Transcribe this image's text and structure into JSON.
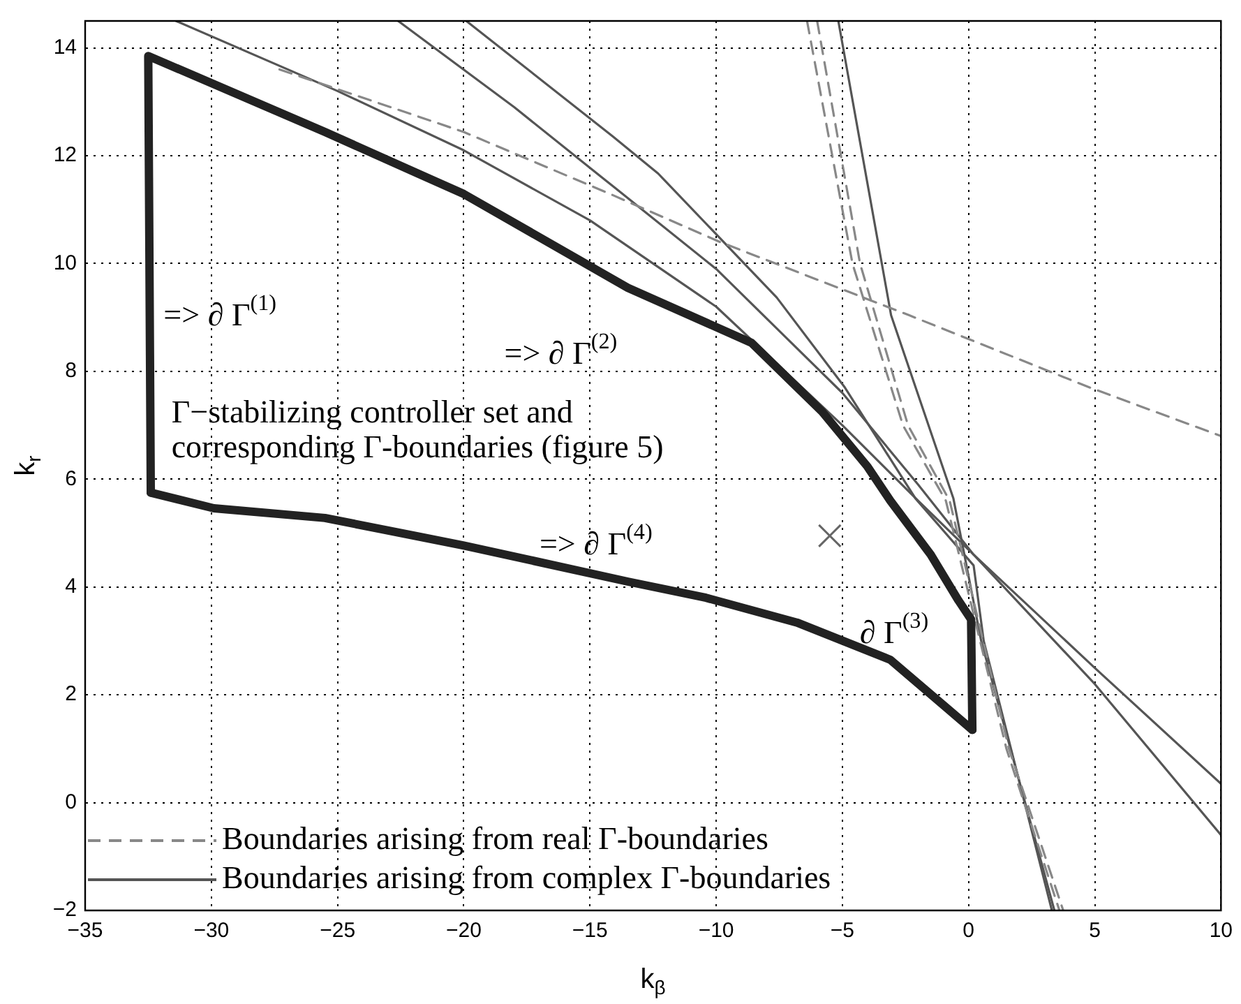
{
  "chart_data": {
    "type": "line",
    "xlabel": "k$_{β}$",
    "ylabel": "k$_{r}$",
    "xlim": [
      -35,
      10
    ],
    "ylim": [
      -2,
      14.5
    ],
    "xticks": [
      -35,
      -30,
      -25,
      -20,
      -15,
      -10,
      -5,
      0,
      5,
      10
    ],
    "yticks": [
      -2,
      0,
      2,
      4,
      6,
      8,
      10,
      12,
      14
    ],
    "grid": true,
    "legend": "bottom left",
    "marker": "none",
    "annotations": [
      "=> ∂ Γ$^{(1)}$",
      "=> ∂ Γ$^{(2)}$",
      "Γ−stabilizing controller set and\ncorresponding Γ-boundaries (figure 5)",
      "=> ∂ Γ$^{(4)}$",
      "∂ Γ$^{(3)}$"
    ],
    "series": [
      {
        "color": "#222222",
        "line_style": "solid",
        "x": [
          -32.4,
          -32.5,
          -25.5,
          -20,
          -13.5,
          -8.6,
          -5.8,
          -4.0,
          -3.1,
          -1.5,
          -0.4,
          0.1,
          0.15
        ],
        "values": [
          5.75,
          13.85,
          12.44,
          11.29,
          9.55,
          8.53,
          7.25,
          6.23,
          5.6,
          4.6,
          3.75,
          3.4,
          1.35
        ]
      },
      {
        "color": "#222222",
        "line_style": "solid",
        "x": [
          -32.4,
          -29.9,
          -25.5,
          -20,
          -13.5,
          -10.4,
          -6.8,
          -3.1,
          0.15
        ],
        "values": [
          5.75,
          5.46,
          5.28,
          4.77,
          4.1,
          3.8,
          3.34,
          2.65,
          1.35
        ]
      },
      {
        "name": "Boundaries arising from real Γ-boundaries",
        "color": "#888888",
        "line_style": "dashed",
        "x": [
          -27.3,
          -20,
          -14.1,
          -9.85,
          -2.35,
          4.8,
          10
        ],
        "values": [
          13.6,
          12.44,
          11.27,
          10.4,
          9.04,
          7.7,
          6.8
        ]
      },
      {
        "color": "#888888",
        "line_style": "dashed",
        "x": [
          -6.4,
          -4.6,
          -2.6,
          -0.9,
          1.5,
          3.6
        ],
        "values": [
          14.5,
          10,
          7,
          5.6,
          1,
          -2
        ]
      },
      {
        "color": "#888888",
        "line_style": "dashed",
        "x": [
          -6.0,
          -4.3,
          -2.4,
          -0.75,
          1.6,
          3.75
        ],
        "values": [
          14.5,
          10,
          7,
          5.6,
          1,
          -2
        ]
      },
      {
        "name": "Boundaries arising from complex Γ-boundaries",
        "color": "#555555",
        "line_style": "solid",
        "x": [
          -31.4,
          -25,
          -20,
          -15,
          -10,
          -5,
          -2,
          0.2,
          5,
          10
        ],
        "values": [
          14.5,
          13.2,
          12.1,
          10.8,
          9.2,
          7.0,
          5.6,
          4.6,
          2.2,
          -0.6
        ]
      },
      {
        "color": "#555555",
        "line_style": "solid",
        "x": [
          -22.6,
          -18,
          -14,
          -10,
          -5,
          -2,
          0.2,
          5,
          10
        ],
        "values": [
          14.5,
          12.9,
          11.4,
          9.9,
          7.6,
          5.9,
          4.6,
          2.5,
          0.35
        ]
      },
      {
        "color": "#555555",
        "line_style": "solid",
        "x": [
          -19.9,
          -14.1,
          -12.3,
          -7.6,
          -4.9,
          -2.1,
          0.2,
          0.6,
          3.3
        ],
        "values": [
          14.5,
          12.36,
          11.67,
          9.37,
          7.7,
          5.64,
          4.4,
          3.0,
          -2
        ]
      },
      {
        "color": "#555555",
        "line_style": "solid",
        "x": [
          -5.16,
          -3.07,
          -0.6,
          0.5,
          3.4
        ],
        "values": [
          14.5,
          9.04,
          5.64,
          3.0,
          -2
        ]
      },
      {
        "type": "scatter",
        "color": "#666666",
        "marker": "cross",
        "x": [
          -5.5
        ],
        "values": [
          4.95
        ]
      }
    ]
  }
}
